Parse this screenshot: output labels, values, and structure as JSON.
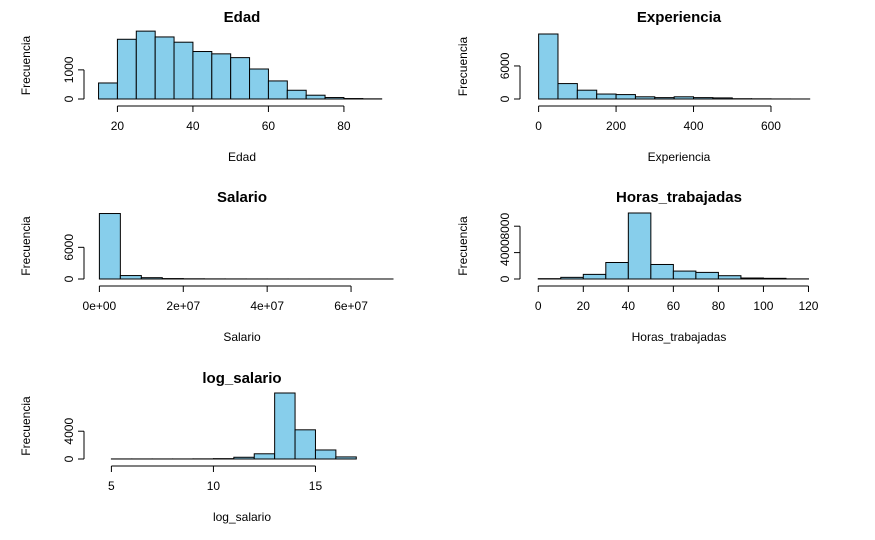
{
  "colors": {
    "bar_fill": "#87ceeb",
    "bar_stroke": "#000000",
    "background": "#ffffff"
  },
  "chart_data": [
    {
      "type": "bar",
      "title": "Edad",
      "xlabel": "Edad",
      "ylabel": "Frecuencia",
      "xlim": [
        13,
        93
      ],
      "ylim": [
        0,
        2300
      ],
      "x_ticks": [
        20,
        40,
        60,
        80
      ],
      "x_tick_labels": [
        "20",
        "40",
        "60",
        "80"
      ],
      "y_ticks": [
        0,
        1000
      ],
      "y_tick_labels": [
        "0",
        "1000"
      ],
      "bins": [
        {
          "x0": 15,
          "x1": 20,
          "count": 550
        },
        {
          "x0": 20,
          "x1": 25,
          "count": 2050
        },
        {
          "x0": 25,
          "x1": 30,
          "count": 2330
        },
        {
          "x0": 30,
          "x1": 35,
          "count": 2130
        },
        {
          "x0": 35,
          "x1": 40,
          "count": 1950
        },
        {
          "x0": 40,
          "x1": 45,
          "count": 1630
        },
        {
          "x0": 45,
          "x1": 50,
          "count": 1550
        },
        {
          "x0": 50,
          "x1": 55,
          "count": 1420
        },
        {
          "x0": 55,
          "x1": 60,
          "count": 1030
        },
        {
          "x0": 60,
          "x1": 65,
          "count": 620
        },
        {
          "x0": 65,
          "x1": 70,
          "count": 300
        },
        {
          "x0": 70,
          "x1": 75,
          "count": 130
        },
        {
          "x0": 75,
          "x1": 80,
          "count": 50
        },
        {
          "x0": 80,
          "x1": 85,
          "count": 15
        },
        {
          "x0": 85,
          "x1": 90,
          "count": 5
        }
      ]
    },
    {
      "type": "bar",
      "title": "Experiencia",
      "xlabel": "Experiencia",
      "ylabel": "Frecuencia",
      "xlim": [
        -30,
        755
      ],
      "ylim": [
        0,
        11800
      ],
      "x_ticks": [
        0,
        200,
        400,
        600
      ],
      "x_tick_labels": [
        "0",
        "200",
        "400",
        "600"
      ],
      "y_ticks": [
        0,
        6000
      ],
      "y_tick_labels": [
        "0",
        "6000"
      ],
      "bins": [
        {
          "x0": 0,
          "x1": 50,
          "count": 11800
        },
        {
          "x0": 50,
          "x1": 100,
          "count": 2800
        },
        {
          "x0": 100,
          "x1": 150,
          "count": 1600
        },
        {
          "x0": 150,
          "x1": 200,
          "count": 900
        },
        {
          "x0": 200,
          "x1": 250,
          "count": 800
        },
        {
          "x0": 250,
          "x1": 300,
          "count": 400
        },
        {
          "x0": 300,
          "x1": 350,
          "count": 250
        },
        {
          "x0": 350,
          "x1": 400,
          "count": 400
        },
        {
          "x0": 400,
          "x1": 450,
          "count": 250
        },
        {
          "x0": 450,
          "x1": 500,
          "count": 200
        },
        {
          "x0": 500,
          "x1": 550,
          "count": 50
        },
        {
          "x0": 550,
          "x1": 600,
          "count": 30
        },
        {
          "x0": 600,
          "x1": 650,
          "count": 10
        },
        {
          "x0": 650,
          "x1": 700,
          "count": 5
        }
      ]
    },
    {
      "type": "bar",
      "title": "Salario",
      "xlabel": "Salario",
      "ylabel": "Frecuencia",
      "xlim": [
        -2000000,
        70000000
      ],
      "ylim": [
        0,
        12500
      ],
      "x_ticks": [
        0,
        20000000,
        40000000,
        60000000
      ],
      "x_tick_labels": [
        "0e+00",
        "2e+07",
        "4e+07",
        "6e+07"
      ],
      "y_ticks": [
        0,
        6000
      ],
      "y_tick_labels": [
        "0",
        "6000"
      ],
      "bins": [
        {
          "x0": 0,
          "x1": 5000000,
          "count": 12400
        },
        {
          "x0": 5000000,
          "x1": 10000000,
          "count": 650
        },
        {
          "x0": 10000000,
          "x1": 15000000,
          "count": 250
        },
        {
          "x0": 15000000,
          "x1": 20000000,
          "count": 80
        },
        {
          "x0": 20000000,
          "x1": 25000000,
          "count": 40
        },
        {
          "x0": 25000000,
          "x1": 30000000,
          "count": 20
        },
        {
          "x0": 30000000,
          "x1": 35000000,
          "count": 15
        },
        {
          "x0": 35000000,
          "x1": 40000000,
          "count": 10
        },
        {
          "x0": 40000000,
          "x1": 45000000,
          "count": 8
        },
        {
          "x0": 45000000,
          "x1": 50000000,
          "count": 5
        },
        {
          "x0": 50000000,
          "x1": 55000000,
          "count": 4
        },
        {
          "x0": 55000000,
          "x1": 60000000,
          "count": 3
        },
        {
          "x0": 60000000,
          "x1": 65000000,
          "count": 2
        },
        {
          "x0": 65000000,
          "x1": 70000000,
          "count": 2
        }
      ]
    },
    {
      "type": "bar",
      "title": "Horas_trabajadas",
      "xlabel": "Horas_trabajadas",
      "ylabel": "Frecuencia",
      "xlim": [
        -5,
        130
      ],
      "ylim": [
        0,
        10000
      ],
      "x_ticks": [
        0,
        20,
        40,
        60,
        80,
        100,
        120
      ],
      "x_tick_labels": [
        "0",
        "20",
        "40",
        "60",
        "80",
        "100",
        "120"
      ],
      "y_ticks": [
        0,
        4000,
        8000
      ],
      "y_tick_labels": [
        "0",
        "4000",
        "8000"
      ],
      "bins": [
        {
          "x0": 0,
          "x1": 10,
          "count": 50
        },
        {
          "x0": 10,
          "x1": 20,
          "count": 250
        },
        {
          "x0": 20,
          "x1": 30,
          "count": 700
        },
        {
          "x0": 30,
          "x1": 40,
          "count": 2500
        },
        {
          "x0": 40,
          "x1": 50,
          "count": 10000
        },
        {
          "x0": 50,
          "x1": 60,
          "count": 2200
        },
        {
          "x0": 60,
          "x1": 70,
          "count": 1200
        },
        {
          "x0": 70,
          "x1": 80,
          "count": 1000
        },
        {
          "x0": 80,
          "x1": 90,
          "count": 500
        },
        {
          "x0": 90,
          "x1": 100,
          "count": 150
        },
        {
          "x0": 100,
          "x1": 110,
          "count": 100
        },
        {
          "x0": 110,
          "x1": 120,
          "count": 20
        }
      ]
    },
    {
      "type": "bar",
      "title": "log_salario",
      "xlabel": "log_salario",
      "ylabel": "Frecuencia",
      "xlim": [
        4,
        18.8
      ],
      "ylim": [
        0,
        9500
      ],
      "x_ticks": [
        5,
        10,
        15
      ],
      "x_tick_labels": [
        "5",
        "10",
        "15"
      ],
      "y_ticks": [
        0,
        4000
      ],
      "y_tick_labels": [
        "0",
        "4000"
      ],
      "bins": [
        {
          "x0": 5,
          "x1": 6,
          "count": 10
        },
        {
          "x0": 6,
          "x1": 7,
          "count": 10
        },
        {
          "x0": 7,
          "x1": 8,
          "count": 10
        },
        {
          "x0": 8,
          "x1": 9,
          "count": 10
        },
        {
          "x0": 9,
          "x1": 10,
          "count": 20
        },
        {
          "x0": 10,
          "x1": 11,
          "count": 50
        },
        {
          "x0": 11,
          "x1": 12,
          "count": 250
        },
        {
          "x0": 12,
          "x1": 13,
          "count": 750
        },
        {
          "x0": 13,
          "x1": 14,
          "count": 9500
        },
        {
          "x0": 14,
          "x1": 15,
          "count": 4200
        },
        {
          "x0": 15,
          "x1": 16,
          "count": 1300
        },
        {
          "x0": 16,
          "x1": 17,
          "count": 300
        }
      ]
    }
  ]
}
